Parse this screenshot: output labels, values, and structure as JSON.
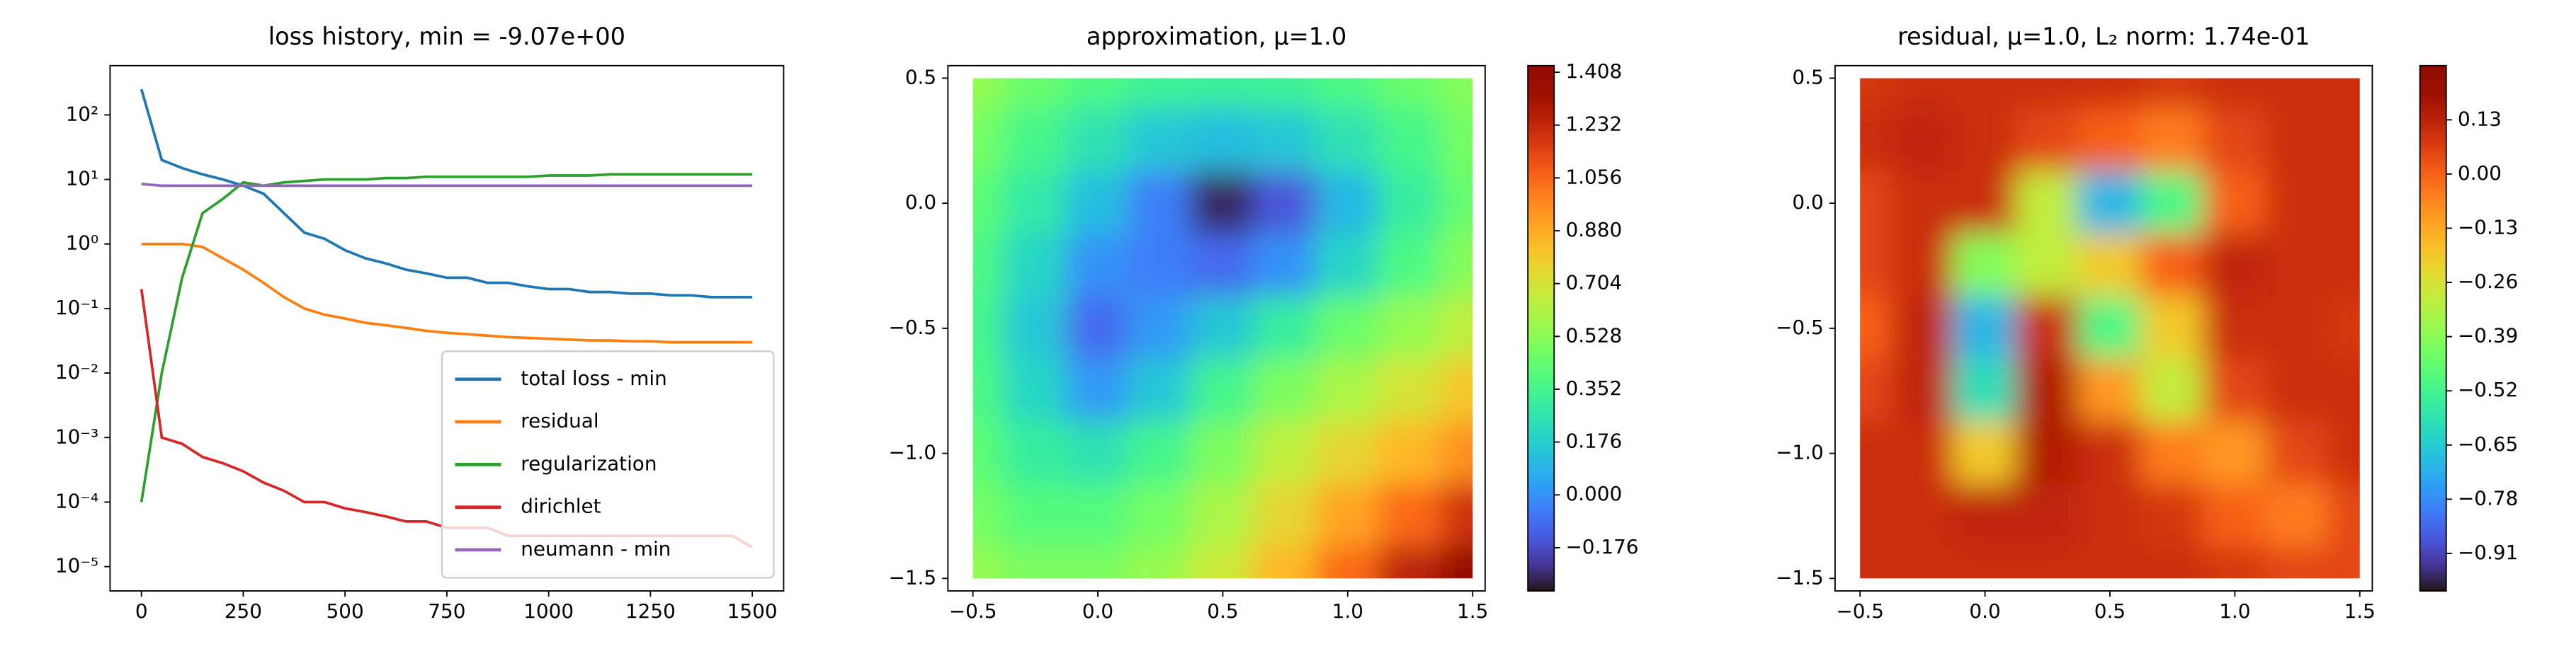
{
  "chart_data": [
    {
      "type": "line",
      "title": "loss history, min = -9.07e+00",
      "yscale": "log",
      "legend": "lower right",
      "x": [
        0,
        50,
        100,
        150,
        200,
        250,
        300,
        350,
        400,
        450,
        500,
        550,
        600,
        650,
        700,
        750,
        800,
        850,
        900,
        950,
        1000,
        1050,
        1100,
        1150,
        1200,
        1250,
        1300,
        1350,
        1400,
        1450,
        1500
      ],
      "series": [
        {
          "name": "total loss - min",
          "color": "#1f77b4",
          "values": [
            250,
            20,
            15,
            12,
            10,
            8,
            6,
            3,
            1.5,
            1.2,
            0.8,
            0.6,
            0.5,
            0.4,
            0.35,
            0.3,
            0.3,
            0.25,
            0.25,
            0.22,
            0.2,
            0.2,
            0.18,
            0.18,
            0.17,
            0.17,
            0.16,
            0.16,
            0.15,
            0.15,
            0.15
          ]
        },
        {
          "name": "residual",
          "color": "#ff7f0e",
          "values": [
            1,
            1,
            1,
            0.9,
            0.6,
            0.4,
            0.25,
            0.15,
            0.1,
            0.08,
            0.07,
            0.06,
            0.055,
            0.05,
            0.045,
            0.042,
            0.04,
            0.038,
            0.036,
            0.035,
            0.034,
            0.033,
            0.032,
            0.032,
            0.031,
            0.031,
            0.03,
            0.03,
            0.03,
            0.03,
            0.03
          ]
        },
        {
          "name": "regularization",
          "color": "#2ca02c",
          "values": [
            0.0001,
            0.01,
            0.3,
            3,
            5,
            9,
            8,
            9,
            9.5,
            10,
            10,
            10,
            10.5,
            10.5,
            11,
            11,
            11,
            11,
            11,
            11,
            11.5,
            11.5,
            11.5,
            12,
            12,
            12,
            12,
            12,
            12,
            12,
            12
          ]
        },
        {
          "name": "dirichlet",
          "color": "#d62728",
          "values": [
            0.2,
            0.001,
            0.0008,
            0.0005,
            0.0004,
            0.0003,
            0.0002,
            0.00015,
            0.0001,
            0.0001,
            8e-05,
            7e-05,
            6e-05,
            5e-05,
            5e-05,
            4e-05,
            4e-05,
            4e-05,
            3e-05,
            3e-05,
            3e-05,
            3e-05,
            3e-05,
            3e-05,
            3e-05,
            3e-05,
            3e-05,
            3e-05,
            3e-05,
            3e-05,
            2e-05
          ]
        },
        {
          "name": "neumann - min",
          "color": "#9467bd",
          "values": [
            8.5,
            8,
            8,
            8,
            8,
            8,
            8,
            8,
            8,
            8,
            8,
            8,
            8,
            8,
            8,
            8,
            8,
            8,
            8,
            8,
            8,
            8,
            8,
            8,
            8,
            8,
            8,
            8,
            8,
            8,
            8
          ]
        }
      ],
      "xlim": [
        -77,
        1577
      ],
      "xticks": [
        0,
        250,
        500,
        750,
        1000,
        1250,
        1500
      ],
      "ylim": [
        4.2e-06,
        580
      ],
      "yticks": [
        {
          "value": 1e-05,
          "label": "10⁻⁵"
        },
        {
          "value": 0.0001,
          "label": "10⁻⁴"
        },
        {
          "value": 0.001,
          "label": "10⁻³"
        },
        {
          "value": 0.01,
          "label": "10⁻²"
        },
        {
          "value": 0.1,
          "label": "10⁻¹"
        },
        {
          "value": 1,
          "label": "10⁰"
        },
        {
          "value": 10,
          "label": "10¹"
        },
        {
          "value": 100,
          "label": "10²"
        }
      ]
    },
    {
      "type": "heatmap",
      "title": "approximation, μ=1.0",
      "colormap": "turbo",
      "x": [
        -0.5,
        -0.25,
        0,
        0.25,
        0.5,
        0.75,
        1,
        1.25,
        1.5
      ],
      "y": [
        0.5,
        0.25,
        0,
        -0.25,
        -0.5,
        -0.75,
        -1,
        -1.25,
        -1.5
      ],
      "values": [
        [
          0.55,
          0.45,
          0.38,
          0.33,
          0.32,
          0.33,
          0.38,
          0.45,
          0.52
        ],
        [
          0.48,
          0.36,
          0.25,
          0.15,
          0.12,
          0.15,
          0.25,
          0.36,
          0.48
        ],
        [
          0.42,
          0.28,
          0.12,
          -0.05,
          -0.28,
          -0.15,
          0.1,
          0.3,
          0.45
        ],
        [
          0.38,
          0.2,
          0.0,
          -0.05,
          -0.1,
          0.0,
          0.2,
          0.38,
          0.52
        ],
        [
          0.36,
          0.15,
          -0.1,
          0.02,
          0.15,
          0.3,
          0.45,
          0.55,
          0.65
        ],
        [
          0.38,
          0.2,
          0.02,
          0.15,
          0.35,
          0.5,
          0.6,
          0.7,
          0.8
        ],
        [
          0.42,
          0.3,
          0.25,
          0.35,
          0.5,
          0.65,
          0.75,
          0.85,
          0.95
        ],
        [
          0.48,
          0.4,
          0.4,
          0.48,
          0.6,
          0.75,
          0.9,
          1.05,
          1.2
        ],
        [
          0.55,
          0.5,
          0.5,
          0.56,
          0.68,
          0.85,
          1.05,
          1.25,
          1.4
        ]
      ],
      "xlim": [
        -0.6,
        1.55
      ],
      "ylim": [
        -1.55,
        0.55
      ],
      "xticks": [
        {
          "value": -0.5,
          "label": "−0.5"
        },
        {
          "value": 0,
          "label": "0.0"
        },
        0.5,
        {
          "value": 1,
          "label": "1.0"
        },
        1.5
      ],
      "yticks": [
        0.5,
        {
          "value": 0,
          "label": "0.0"
        },
        {
          "value": -0.5,
          "label": "−0.5"
        },
        {
          "value": -1,
          "label": "−1.0"
        },
        {
          "value": -1.5,
          "label": "−1.5"
        }
      ],
      "clim": [
        -0.32,
        1.43
      ],
      "cticks": [
        {
          "value": -0.176,
          "label": "−0.176"
        },
        {
          "value": 0,
          "label": "0.000"
        },
        0.176,
        0.352,
        0.528,
        0.704,
        {
          "value": 0.88,
          "label": "0.880"
        },
        1.056,
        1.232,
        1.408
      ]
    },
    {
      "type": "heatmap",
      "title": "residual, μ=1.0, L₂ norm: 1.74e-01",
      "colormap": "turbo",
      "x": [
        -0.5,
        -0.25,
        0,
        0.25,
        0.5,
        0.75,
        1,
        1.25,
        1.5
      ],
      "y": [
        0.5,
        0.25,
        0,
        -0.25,
        -0.5,
        -0.75,
        -1,
        -1.25,
        -1.5
      ],
      "values": [
        [
          0.08,
          0.1,
          0.1,
          0.1,
          0.1,
          0.08,
          0.1,
          0.1,
          0.1
        ],
        [
          0.1,
          0.12,
          0.1,
          0.05,
          0.0,
          -0.05,
          0.05,
          0.1,
          0.1
        ],
        [
          0.05,
          0.1,
          0.1,
          -0.3,
          -0.7,
          -0.5,
          0.0,
          0.1,
          0.1
        ],
        [
          0.05,
          0.1,
          -0.4,
          -0.3,
          -0.2,
          0.0,
          0.12,
          0.1,
          0.1
        ],
        [
          0.0,
          0.12,
          -0.7,
          0.1,
          -0.5,
          -0.2,
          0.1,
          0.1,
          0.08
        ],
        [
          0.05,
          0.12,
          -0.6,
          0.15,
          -0.1,
          -0.3,
          0.05,
          0.1,
          0.1
        ],
        [
          0.1,
          0.1,
          -0.2,
          0.15,
          0.1,
          -0.05,
          -0.1,
          0.05,
          0.1
        ],
        [
          0.1,
          0.1,
          0.12,
          0.12,
          0.1,
          0.08,
          0.0,
          -0.05,
          0.05
        ],
        [
          0.1,
          0.1,
          0.1,
          0.1,
          0.1,
          0.1,
          0.08,
          0.05,
          0.05
        ]
      ],
      "xlim": [
        -0.6,
        1.55
      ],
      "ylim": [
        -1.55,
        0.55
      ],
      "xticks": [
        {
          "value": -0.5,
          "label": "−0.5"
        },
        {
          "value": 0,
          "label": "0.0"
        },
        0.5,
        {
          "value": 1,
          "label": "1.0"
        },
        1.5
      ],
      "yticks": [
        0.5,
        {
          "value": 0,
          "label": "0.0"
        },
        {
          "value": -0.5,
          "label": "−0.5"
        },
        {
          "value": -1,
          "label": "−1.0"
        },
        {
          "value": -1.5,
          "label": "−1.5"
        }
      ],
      "clim": [
        -1.0,
        0.26
      ],
      "cticks": [
        0.13,
        {
          "value": 0,
          "label": "0.00"
        },
        {
          "value": -0.13,
          "label": "−0.13"
        },
        {
          "value": -0.26,
          "label": "−0.26"
        },
        {
          "value": -0.39,
          "label": "−0.39"
        },
        {
          "value": -0.52,
          "label": "−0.52"
        },
        {
          "value": -0.65,
          "label": "−0.65"
        },
        {
          "value": -0.78,
          "label": "−0.78"
        },
        {
          "value": -0.91,
          "label": "−0.91"
        }
      ]
    }
  ]
}
